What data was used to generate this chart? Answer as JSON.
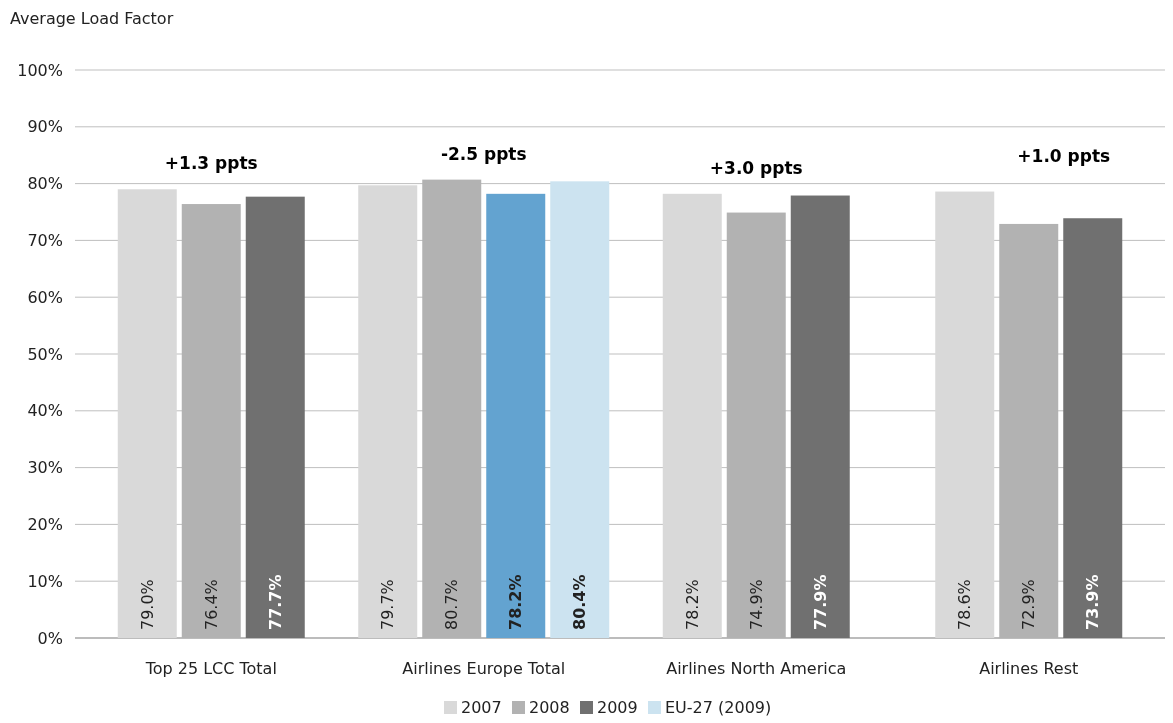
{
  "chart_data": {
    "type": "bar",
    "ylabel": "Average Load Factor",
    "categories": [
      "Top 25 LCC Total",
      "Airlines Europe Total",
      "Airlines North America",
      "Airlines Rest"
    ],
    "series": [
      {
        "name": "2007",
        "color": "#d9d9d9",
        "values": [
          79.0,
          79.7,
          78.2,
          78.6
        ],
        "value_labels": [
          "79.0%",
          "79.7%",
          "78.2%",
          "78.6%"
        ]
      },
      {
        "name": "2008",
        "color": "#b2b2b2",
        "values": [
          76.4,
          80.7,
          74.9,
          72.9
        ],
        "value_labels": [
          "76.4%",
          "80.7%",
          "74.9%",
          "72.9%"
        ]
      },
      {
        "name": "2009",
        "color": "#707070",
        "colors": [
          "#707070",
          "#63a3d0",
          "#707070",
          "#707070"
        ],
        "values": [
          77.7,
          78.2,
          77.9,
          73.9
        ],
        "value_labels": [
          "77.7%",
          "78.2%",
          "77.9%",
          "73.9%"
        ]
      },
      {
        "name": "EU-27 (2009)",
        "color": "#cce3f0",
        "values": [
          null,
          80.4,
          null,
          null
        ],
        "value_labels": [
          null,
          "80.4%",
          null,
          null
        ]
      }
    ],
    "ylim": [
      0,
      100
    ],
    "yticks": [
      {
        "value": 0,
        "label": "0%"
      },
      {
        "value": 10,
        "label": "10%"
      },
      {
        "value": 20,
        "label": "20%"
      },
      {
        "value": 30,
        "label": "30%"
      },
      {
        "value": 40,
        "label": "40%"
      },
      {
        "value": 50,
        "label": "50%"
      },
      {
        "value": 60,
        "label": "60%"
      },
      {
        "value": 70,
        "label": "70%"
      },
      {
        "value": 80,
        "label": "80%"
      },
      {
        "value": 90,
        "label": "90%"
      },
      {
        "value": 100,
        "label": "100%"
      }
    ],
    "grid": "y",
    "legend": "bottom",
    "annotations": [
      "+1.3 ppts",
      "-2.5 ppts",
      "+3.0 ppts",
      "+1.0 ppts"
    ]
  }
}
